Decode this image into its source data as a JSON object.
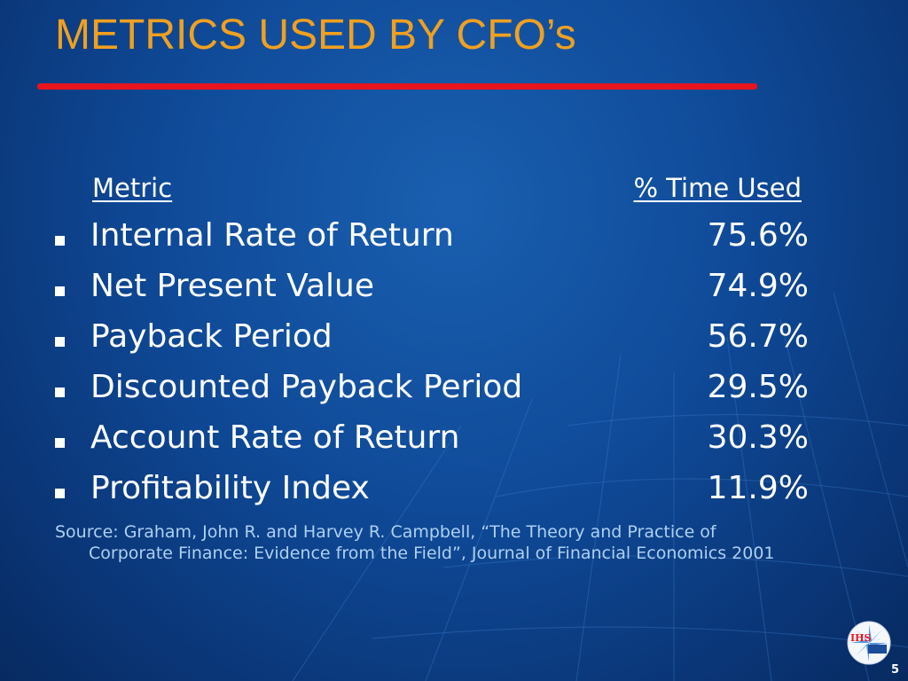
{
  "title": "METRICS USED BY CFO’s",
  "table": {
    "header_metric": "Metric",
    "header_pct": "% Time Used",
    "rows": [
      {
        "metric": "Internal Rate of Return",
        "pct": "75.6%"
      },
      {
        "metric": "Net Present Value",
        "pct": "74.9%"
      },
      {
        "metric": "Payback Period",
        "pct": "56.7%"
      },
      {
        "metric": "Discounted Payback Period",
        "pct": "29.5%"
      },
      {
        "metric": "Account Rate of Return",
        "pct": "30.3%"
      },
      {
        "metric": "Profitability Index",
        "pct": "11.9%"
      }
    ]
  },
  "source": {
    "line1": "Source: Graham, John R. and Harvey R. Campbell,  “The Theory and Practice of",
    "line2": "Corporate Finance: Evidence from the Field”, Journal of Financial Economics 2001"
  },
  "logo": {
    "text": "IHS"
  },
  "page_number": "5",
  "colors": {
    "title": "#f0a020",
    "rule": "#e8141e",
    "source": "#aed0f0"
  }
}
